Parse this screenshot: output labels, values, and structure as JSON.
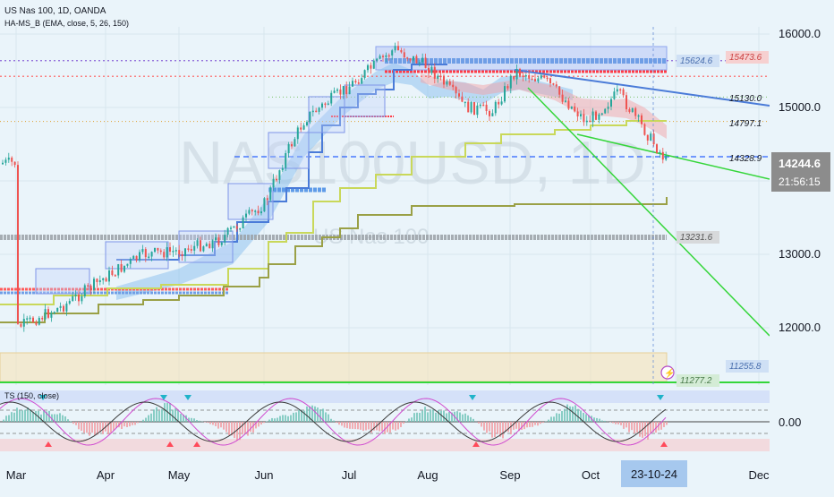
{
  "header": {
    "symbol_line": "US Nas 100, 1D, OANDA",
    "indicator_line": "HA-MS_B (EMA, close, 5, 26, 150)"
  },
  "watermark": {
    "ticker": "NAS100USD, 1D",
    "name": "US Nas 100"
  },
  "oscillator": {
    "label": "TS (150, close)",
    "zero_label": "0.00"
  },
  "colors": {
    "background": "#eaf4fa",
    "candle_up": "#26a69a",
    "candle_down": "#ef5350",
    "trend_blue": "#4a7bd8",
    "trend_green": "#35d63a",
    "olive": "#9aa046",
    "yellow_green": "#c9d85a",
    "accent_red": "#ff3b47"
  },
  "price_axis": {
    "ticks": [
      "16000.0",
      "15000.0",
      "13000.0",
      "12000.0"
    ],
    "current_price": "14244.6",
    "countdown": "21:56:15"
  },
  "level_labels": {
    "l15624": "15624.6",
    "l15473": "15473.6",
    "l15130": "15130.0",
    "l14797": "14797.1",
    "l14328": "14328.9",
    "l13231": "13231.6",
    "l11255": "11255.8",
    "l11277": "11277.2"
  },
  "time_axis": {
    "ticks": [
      "Mar",
      "Apr",
      "May",
      "Jun",
      "Jul",
      "Aug",
      "Sep",
      "Oct",
      "Dec"
    ],
    "cursor_date": "23-10-24"
  },
  "chart_data": {
    "type": "candlestick",
    "symbol": "US Nas 100",
    "timeframe": "1D",
    "ylim": [
      11550,
      16150
    ],
    "close_path": [
      [
        "Mar",
        12000
      ],
      [
        "Mar mid",
        12300
      ],
      [
        "Apr",
        12700
      ],
      [
        "Apr mid",
        13000
      ],
      [
        "May",
        13050
      ],
      [
        "May mid",
        13200
      ],
      [
        "Jun",
        13700
      ],
      [
        "Jun mid",
        14400
      ],
      [
        "Jul",
        14850
      ],
      [
        "Jul mid",
        15300
      ],
      [
        "Jul end",
        15800
      ],
      [
        "Aug",
        15550
      ],
      [
        "Aug mid",
        15000
      ],
      [
        "Aug end",
        14950
      ],
      [
        "Sep",
        15500
      ],
      [
        "Sep mid",
        15350
      ],
      [
        "Oct",
        14800
      ],
      [
        "Oct mid",
        15200
      ],
      [
        "Oct end",
        14244.6
      ]
    ],
    "horizontal_levels": [
      15624.6,
      15473.6,
      15130.0,
      14797.1,
      14328.9,
      13231.6,
      11255.8,
      11277.2
    ],
    "trendlines": [
      {
        "color": "blue",
        "from": [
          "Sep",
          15600
        ],
        "to": [
          "Dec",
          15000
        ]
      },
      {
        "color": "green",
        "from": [
          "Oct",
          14500
        ],
        "to": [
          "Dec",
          14000
        ]
      },
      {
        "color": "green",
        "from": [
          "Sep",
          15250
        ],
        "to": [
          "Dec",
          11850
        ]
      }
    ]
  }
}
